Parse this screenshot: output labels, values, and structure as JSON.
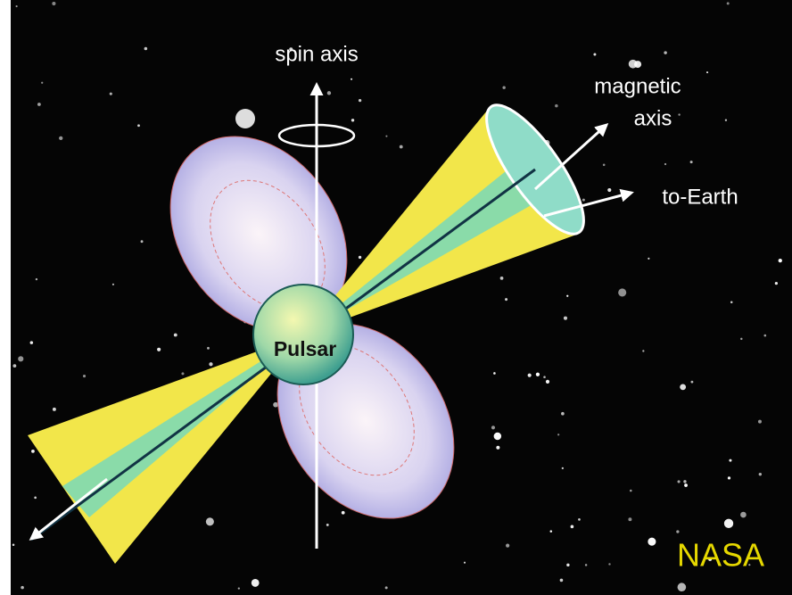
{
  "labels": {
    "spin_axis": "spin axis",
    "magnetic_axis": [
      "magnetic",
      "axis"
    ],
    "to_earth": "to-Earth",
    "pulsar": "Pulsar",
    "credit": "NASA"
  }
}
